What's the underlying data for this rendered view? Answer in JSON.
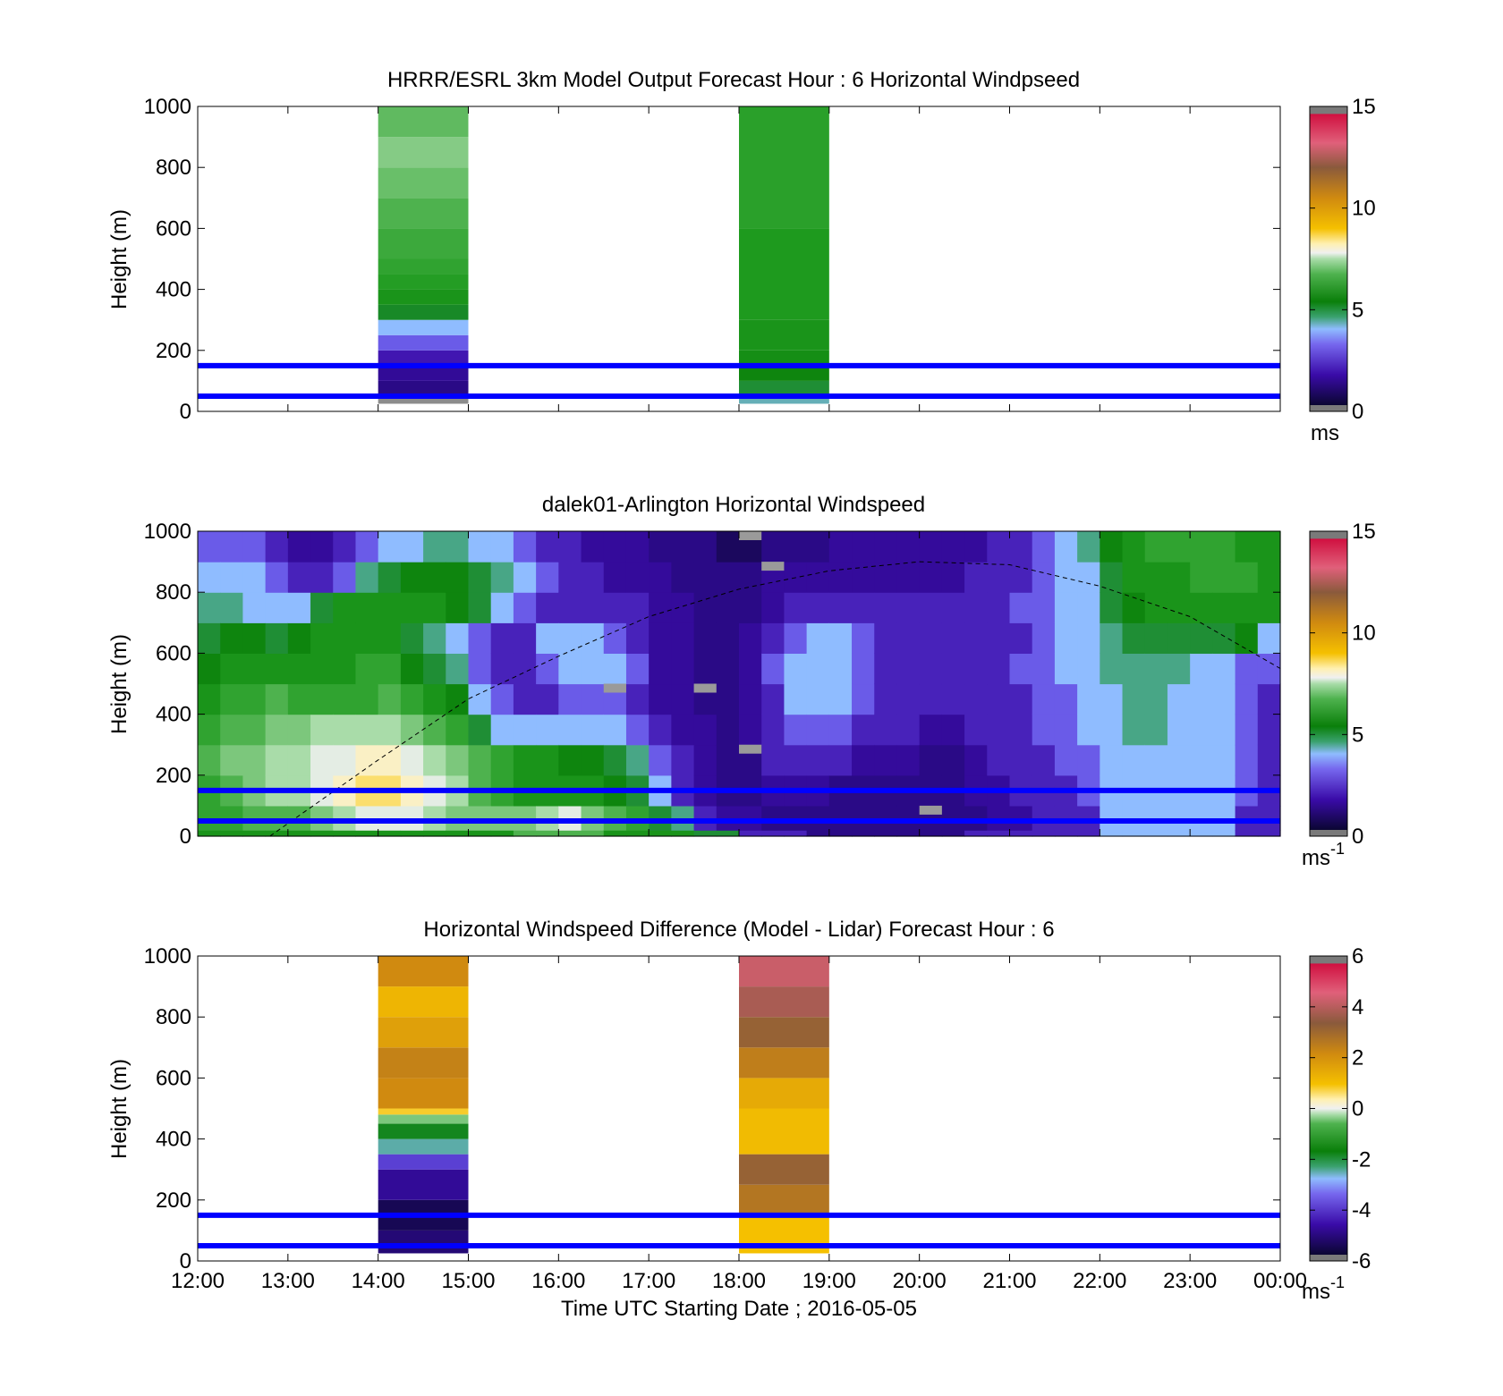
{
  "chart_data": [
    {
      "type": "heatmap",
      "title": "HRRR/ESRL 3km Model Output   Forecast Hour : 6 Horizontal Windpseed",
      "ylabel": "Height (m)",
      "xlabel": "",
      "x_ticks": [
        "12:00",
        "13:00",
        "14:00",
        "15:00",
        "16:00",
        "17:00",
        "18:00",
        "19:00",
        "20:00",
        "21:00",
        "22:00",
        "23:00",
        "00:00"
      ],
      "show_x_tick_labels": false,
      "y_ticks": [
        0,
        200,
        400,
        600,
        800,
        1000
      ],
      "xlim_hours": [
        12,
        24
      ],
      "ylim": [
        0,
        1000
      ],
      "colorbar": {
        "ticks": [
          0,
          5,
          10,
          15
        ],
        "range": [
          0,
          15
        ],
        "scheme": "speed",
        "unit": "ms",
        "unit_superscript": ""
      },
      "reference_lines_m": [
        50,
        150
      ],
      "columns": [
        {
          "start_hour": 14,
          "end_hour": 15,
          "levels": [
            {
              "bottom": 25,
              "top": 50,
              "value": -0.2
            },
            {
              "bottom": 50,
              "top": 100,
              "value": 1.0
            },
            {
              "bottom": 100,
              "top": 150,
              "value": 1.4
            },
            {
              "bottom": 150,
              "top": 200,
              "value": 1.9
            },
            {
              "bottom": 200,
              "top": 250,
              "value": 2.5
            },
            {
              "bottom": 250,
              "top": 300,
              "value": 3.0
            },
            {
              "bottom": 300,
              "top": 350,
              "value": 4.1
            },
            {
              "bottom": 350,
              "top": 400,
              "value": 5.0
            },
            {
              "bottom": 400,
              "top": 450,
              "value": 5.3
            },
            {
              "bottom": 450,
              "top": 500,
              "value": 5.5
            },
            {
              "bottom": 500,
              "top": 600,
              "value": 5.7
            },
            {
              "bottom": 600,
              "top": 700,
              "value": 6.0
            },
            {
              "bottom": 700,
              "top": 800,
              "value": 6.3
            },
            {
              "bottom": 800,
              "top": 900,
              "value": 6.6
            },
            {
              "bottom": 900,
              "top": 1000,
              "value": 6.2
            }
          ]
        },
        {
          "start_hour": 18,
          "end_hour": 19,
          "levels": [
            {
              "bottom": 25,
              "top": 50,
              "value": 3.3
            },
            {
              "bottom": 50,
              "top": 100,
              "value": 4.0
            },
            {
              "bottom": 100,
              "top": 150,
              "value": 4.5
            },
            {
              "bottom": 150,
              "top": 200,
              "value": 4.8
            },
            {
              "bottom": 200,
              "top": 300,
              "value": 5.0
            },
            {
              "bottom": 300,
              "top": 600,
              "value": 5.2
            },
            {
              "bottom": 600,
              "top": 1000,
              "value": 5.4
            }
          ]
        }
      ]
    },
    {
      "type": "heatmap",
      "title": "dalek01-Arlington  Horizontal Windspeed",
      "ylabel": "Height (m)",
      "xlabel": "",
      "x_ticks": [
        "12:00",
        "13:00",
        "14:00",
        "15:00",
        "16:00",
        "17:00",
        "18:00",
        "19:00",
        "20:00",
        "21:00",
        "22:00",
        "23:00",
        "00:00"
      ],
      "show_x_tick_labels": false,
      "y_ticks": [
        0,
        200,
        400,
        600,
        800,
        1000
      ],
      "xlim_hours": [
        12,
        24
      ],
      "ylim": [
        0,
        1000
      ],
      "colorbar": {
        "ticks": [
          0,
          5,
          10,
          15
        ],
        "range": [
          0,
          15
        ],
        "scheme": "speed",
        "unit": "ms",
        "unit_superscript": "-1"
      },
      "reference_lines_m": [
        50,
        150
      ],
      "time_columns_hours": [
        12.0,
        12.25,
        12.5,
        12.75,
        13.0,
        13.25,
        13.5,
        13.75,
        14.0,
        14.25,
        14.5,
        14.75,
        15.0,
        15.25,
        15.5,
        15.75,
        16.0,
        16.25,
        16.5,
        16.75,
        17.0,
        17.25,
        17.5,
        17.75,
        18.0,
        18.25,
        18.5,
        18.75,
        19.0,
        19.25,
        19.5,
        19.75,
        20.0,
        20.25,
        20.5,
        20.75,
        21.0,
        21.25,
        21.5,
        21.75,
        22.0,
        22.25,
        22.5,
        22.75,
        23.0,
        23.25,
        23.5,
        23.75
      ],
      "column_width_hours": 0.25,
      "height_bins_m": [
        20,
        100,
        200,
        300,
        400,
        500,
        600,
        700,
        800,
        900,
        1000
      ],
      "speed_matrix_ms": [
        [
          5,
          5,
          5,
          5,
          5,
          5,
          5,
          5,
          5,
          5,
          5,
          5,
          5,
          5,
          6,
          6,
          6,
          6,
          5,
          5,
          5,
          5,
          4,
          4,
          2,
          2,
          2,
          1,
          1,
          1,
          1,
          1,
          1,
          1,
          2,
          2,
          2,
          2,
          2,
          2,
          3,
          3,
          3,
          3,
          3,
          3,
          2,
          2
        ],
        [
          5.5,
          5.5,
          6,
          6,
          6,
          6.5,
          7,
          7.5,
          7.5,
          7.5,
          7,
          6.5,
          6.5,
          6.5,
          6.5,
          7,
          7.5,
          6.5,
          6,
          5.5,
          4,
          3.5,
          2,
          1.5,
          1.5,
          1,
          1,
          1,
          1,
          1,
          1,
          1,
          1,
          1,
          1,
          1.5,
          1.5,
          2,
          2,
          2,
          3,
          3,
          3,
          3,
          3,
          3,
          2,
          2
        ],
        [
          5.5,
          6,
          6.5,
          7,
          7,
          7.5,
          8,
          8.5,
          8.5,
          8,
          7.5,
          7,
          6,
          5.5,
          5,
          5,
          5,
          5,
          4.5,
          4,
          3,
          2,
          1.5,
          1,
          1,
          1.5,
          1.5,
          1.5,
          1,
          1,
          1,
          1,
          1,
          1,
          1.5,
          1.5,
          2,
          2,
          2,
          2.5,
          3,
          3,
          3,
          3,
          3,
          3,
          2.5,
          2
        ],
        [
          6,
          6.5,
          6.5,
          7,
          7,
          7.5,
          7.5,
          8,
          8,
          7.5,
          7,
          6.5,
          6,
          5.5,
          5,
          5,
          4.5,
          4.5,
          4,
          3.5,
          2.5,
          2,
          1.5,
          1,
          1,
          2,
          2,
          2,
          2,
          1.5,
          1.5,
          1.5,
          1,
          1,
          1.5,
          2,
          2,
          2,
          2.5,
          2.5,
          3,
          3,
          3,
          3,
          3,
          3,
          2.5,
          2
        ],
        [
          5.5,
          6,
          6,
          6.5,
          6.5,
          7,
          7,
          7,
          7,
          6.5,
          6,
          5.5,
          4,
          3,
          3,
          3,
          3,
          3,
          3,
          2.5,
          2,
          1.5,
          1.5,
          1,
          1.5,
          2,
          2.5,
          2.5,
          2.5,
          2,
          2,
          2,
          1.5,
          1.5,
          2,
          2,
          2,
          2.5,
          2.5,
          3,
          3,
          3.5,
          3.5,
          3,
          3,
          3,
          2.5,
          2
        ],
        [
          5,
          5.5,
          5.5,
          6,
          5.5,
          5.5,
          5.5,
          5.5,
          6,
          5.5,
          5,
          4.5,
          3,
          2.5,
          2,
          2,
          2.5,
          2.5,
          2.5,
          2,
          1.5,
          1.5,
          1,
          1,
          1.5,
          2,
          3,
          3,
          3,
          2.5,
          2,
          2,
          2,
          2,
          2,
          2,
          2,
          2.5,
          2.5,
          3,
          3,
          3.5,
          3.5,
          3,
          3,
          3,
          2.5,
          2
        ],
        [
          4.5,
          5,
          5,
          5,
          5,
          5,
          5,
          5.5,
          5.5,
          4.5,
          4,
          3.5,
          2.5,
          2,
          2,
          2.5,
          3,
          3,
          3,
          2.5,
          1.5,
          1.5,
          1,
          1,
          1.5,
          2.5,
          3,
          3,
          3,
          2.5,
          2,
          2,
          2,
          2,
          2,
          2,
          2.5,
          2.5,
          3,
          3,
          3.5,
          3.5,
          3.5,
          3.5,
          3,
          3,
          2.5,
          2.5
        ],
        [
          4,
          4.5,
          4.5,
          4,
          4.5,
          5,
          5,
          5,
          5,
          4,
          3.5,
          3,
          2.5,
          2,
          2,
          3,
          3,
          3,
          2.5,
          2,
          1.5,
          1.5,
          1,
          1,
          1.5,
          2,
          2.5,
          3,
          3,
          2.5,
          2,
          2,
          2,
          2,
          2,
          2,
          2,
          2.5,
          3,
          3,
          3.5,
          4,
          4,
          4,
          4,
          4,
          4.5,
          3
        ],
        [
          3.5,
          3.5,
          3,
          3,
          3,
          4,
          5,
          5,
          5,
          5,
          5,
          4.5,
          4,
          3,
          2.5,
          2,
          2,
          2,
          2,
          2,
          1.5,
          1.5,
          1,
          1,
          1,
          1.5,
          2,
          2,
          2,
          2,
          2,
          2,
          2,
          2,
          2,
          2,
          2.5,
          2.5,
          3,
          3,
          4,
          4.5,
          5,
          5,
          5,
          5,
          5,
          5
        ],
        [
          3,
          3,
          3,
          2.5,
          2,
          2,
          2.5,
          3.5,
          4,
          4.5,
          4.5,
          4.5,
          4,
          3.5,
          3,
          2.5,
          2,
          2,
          1.5,
          1.5,
          1.5,
          1,
          1,
          1,
          1,
          1.5,
          1.5,
          1.5,
          1.5,
          1.5,
          1.5,
          1.5,
          1.5,
          1.5,
          2,
          2,
          2,
          2.5,
          3,
          3,
          4,
          5,
          5,
          5,
          5.5,
          5.5,
          5.5,
          5
        ],
        [
          2.5,
          2.5,
          2.5,
          2,
          1.5,
          1.5,
          2,
          2.5,
          3,
          3,
          3.5,
          3.5,
          3,
          3,
          2.5,
          2,
          2,
          1.5,
          1.5,
          1.5,
          1,
          1,
          1,
          0.5,
          0.5,
          1,
          1,
          1,
          1.5,
          1.5,
          1.5,
          1.5,
          1.5,
          1.5,
          1.5,
          2,
          2,
          2.5,
          3,
          3.5,
          4.5,
          5,
          5.5,
          5.5,
          5.5,
          5.5,
          5,
          5
        ]
      ],
      "missing_cells": [
        {
          "hour": 18.0,
          "height_m": 1000
        },
        {
          "hour": 18.25,
          "height_m": 900
        },
        {
          "hour": 18.0,
          "height_m": 300
        },
        {
          "hour": 16.5,
          "height_m": 500
        },
        {
          "hour": 17.5,
          "height_m": 500
        },
        {
          "hour": 20.0,
          "height_m": 100
        }
      ],
      "dashed_curve": {
        "x_hours": [
          12.8,
          14,
          15,
          16,
          17,
          18,
          19,
          20,
          21,
          22,
          23,
          24
        ],
        "y_m": [
          0,
          250,
          450,
          590,
          720,
          810,
          870,
          900,
          890,
          820,
          720,
          550
        ]
      }
    },
    {
      "type": "heatmap",
      "title": "Horizontal Windspeed Difference (Model - Lidar) Forecast Hour : 6",
      "ylabel": "Height (m)",
      "xlabel": "Time UTC  Starting Date ; 2016-05-05",
      "x_ticks": [
        "12:00",
        "13:00",
        "14:00",
        "15:00",
        "16:00",
        "17:00",
        "18:00",
        "19:00",
        "20:00",
        "21:00",
        "22:00",
        "23:00",
        "00:00"
      ],
      "show_x_tick_labels": true,
      "y_ticks": [
        0,
        200,
        400,
        600,
        800,
        1000
      ],
      "xlim_hours": [
        12,
        24
      ],
      "ylim": [
        0,
        1000
      ],
      "colorbar": {
        "ticks": [
          -6,
          -4,
          -2,
          0,
          2,
          4,
          6
        ],
        "range": [
          -6,
          6
        ],
        "scheme": "diff",
        "unit": "ms",
        "unit_superscript": "-1"
      },
      "reference_lines_m": [
        50,
        150
      ],
      "columns": [
        {
          "start_hour": 14,
          "end_hour": 15,
          "levels": [
            {
              "bottom": 25,
              "top": 100,
              "value": -5.2
            },
            {
              "bottom": 100,
              "top": 200,
              "value": -5.6
            },
            {
              "bottom": 200,
              "top": 300,
              "value": -4.8
            },
            {
              "bottom": 300,
              "top": 350,
              "value": -4.2
            },
            {
              "bottom": 350,
              "top": 400,
              "value": -3.2
            },
            {
              "bottom": 400,
              "top": 450,
              "value": -2.6
            },
            {
              "bottom": 450,
              "top": 480,
              "value": -1.0
            },
            {
              "bottom": 480,
              "top": 500,
              "value": 1.0
            },
            {
              "bottom": 500,
              "top": 600,
              "value": 2.2
            },
            {
              "bottom": 600,
              "top": 700,
              "value": 2.4
            },
            {
              "bottom": 700,
              "top": 800,
              "value": 1.8
            },
            {
              "bottom": 800,
              "top": 900,
              "value": 1.4
            },
            {
              "bottom": 900,
              "top": 1000,
              "value": 2.2
            }
          ]
        },
        {
          "start_hour": 18,
          "end_hour": 19,
          "levels": [
            {
              "bottom": 25,
              "top": 150,
              "value": 1.2
            },
            {
              "bottom": 150,
              "top": 250,
              "value": 2.7
            },
            {
              "bottom": 250,
              "top": 350,
              "value": 3.2
            },
            {
              "bottom": 350,
              "top": 500,
              "value": 1.3
            },
            {
              "bottom": 500,
              "top": 600,
              "value": 1.6
            },
            {
              "bottom": 600,
              "top": 700,
              "value": 2.5
            },
            {
              "bottom": 700,
              "top": 800,
              "value": 3.2
            },
            {
              "bottom": 800,
              "top": 900,
              "value": 3.8
            },
            {
              "bottom": 900,
              "top": 1000,
              "value": 4.2
            }
          ]
        }
      ]
    }
  ]
}
